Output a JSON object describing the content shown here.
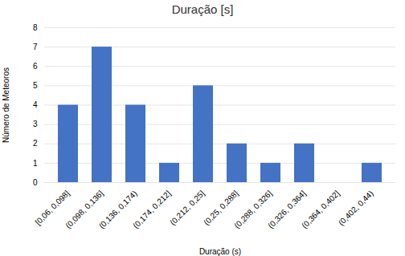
{
  "chart_data": {
    "type": "bar",
    "title": "Duração [s]",
    "xlabel": "Duração (s)",
    "ylabel": "Número de Meteoros",
    "categories": [
      "[0,06, 0,098]",
      "(0,098, 0,136]",
      "(0,136, 0,174)",
      "(0,174, 0,212]",
      "(0,212, 0,25]",
      "(0,25, 0,288]",
      "(0,288, 0,326]",
      "(0,326, 0,364]",
      "(0,364, 0,402]",
      "(0,402, 0,44)"
    ],
    "values": [
      4,
      7,
      4,
      1,
      5,
      2,
      1,
      2,
      0,
      1
    ],
    "color": "#4472C4",
    "ylim": [
      0,
      8
    ],
    "yticks": [
      0,
      1,
      2,
      3,
      4,
      5,
      6,
      7,
      8
    ],
    "grid": true
  }
}
